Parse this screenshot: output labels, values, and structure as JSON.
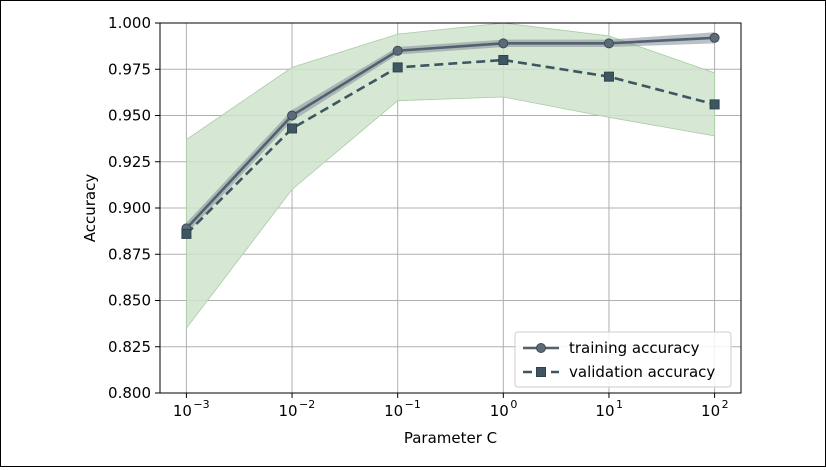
{
  "chart_data": {
    "type": "line",
    "xscale": "log",
    "x": [
      0.001,
      0.01,
      0.1,
      1,
      10,
      100
    ],
    "xtick_labels": [
      {
        "base": "10",
        "exp": "−3"
      },
      {
        "base": "10",
        "exp": "−2"
      },
      {
        "base": "10",
        "exp": "−1"
      },
      {
        "base": "10",
        "exp": "0"
      },
      {
        "base": "10",
        "exp": "1"
      },
      {
        "base": "10",
        "exp": "2"
      }
    ],
    "yticks": [
      "0.800",
      "0.825",
      "0.850",
      "0.875",
      "0.900",
      "0.925",
      "0.950",
      "0.975",
      "1.000"
    ],
    "ylim": [
      0.8,
      1.0
    ],
    "xlabel": "Parameter C",
    "ylabel": "Accuracy",
    "grid": true,
    "legend_position": "lower-right",
    "series": [
      {
        "name": "training accuracy",
        "style": "solid",
        "marker": "circle",
        "values": [
          0.889,
          0.95,
          0.985,
          0.989,
          0.989,
          0.992
        ],
        "band_lower": [
          0.886,
          0.947,
          0.983,
          0.987,
          0.987,
          0.989
        ],
        "band_upper": [
          0.892,
          0.953,
          0.987,
          0.991,
          0.991,
          0.995
        ],
        "color": "#52616e",
        "band_color": "#8a96a0"
      },
      {
        "name": "validation accuracy",
        "style": "dashed",
        "marker": "square",
        "values": [
          0.886,
          0.943,
          0.976,
          0.98,
          0.971,
          0.956
        ],
        "band_lower": [
          0.835,
          0.91,
          0.958,
          0.96,
          0.949,
          0.939
        ],
        "band_upper": [
          0.937,
          0.976,
          0.994,
          1.0,
          0.993,
          0.973
        ],
        "color": "#3e5661",
        "band_color": "#cfe3cc"
      }
    ]
  }
}
